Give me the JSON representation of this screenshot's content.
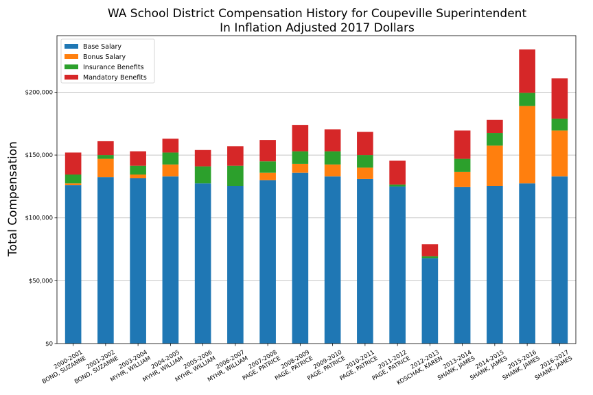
{
  "chart_data": {
    "type": "bar",
    "stacked": true,
    "title": "WA School District Compensation History for Coupeville Superintendent",
    "subtitle": "In Inflation Adjusted 2017 Dollars",
    "ylabel": "Total Compensation",
    "ylim": [
      0,
      245000
    ],
    "yticks": [
      0,
      50000,
      100000,
      150000,
      200000
    ],
    "ytick_labels": [
      "$0",
      "$50,000",
      "$100,000",
      "$150,000",
      "$200,000"
    ],
    "grid": "horizontal",
    "legend_position": "top-left",
    "categories": [
      [
        "2000-2001",
        "BOND, SUZANNE"
      ],
      [
        "2001-2002",
        "BOND, SUZANNE"
      ],
      [
        "2003-2004",
        "MYHR, WILLIAM"
      ],
      [
        "2004-2005",
        "MYHR, WILLIAM"
      ],
      [
        "2005-2006",
        "MYHR, WILLIAM"
      ],
      [
        "2006-2007",
        "MYHR, WILLIAM"
      ],
      [
        "2007-2008",
        "PAGE, PATRICE"
      ],
      [
        "2008-2009",
        "PAGE, PATRICE"
      ],
      [
        "2009-2010",
        "PAGE, PATRICE"
      ],
      [
        "2010-2011",
        "PAGE, PATRICE"
      ],
      [
        "2011-2012",
        "PAGE, PATRICE"
      ],
      [
        "2012-2013",
        "KOSCHAK, KAREN"
      ],
      [
        "2013-2014",
        "SHANK, JAMES"
      ],
      [
        "2014-2015",
        "SHANK, JAMES"
      ],
      [
        "2015-2016",
        "SHANK, JAMES"
      ],
      [
        "2016-2017",
        "SHANK, JAMES"
      ]
    ],
    "series": [
      {
        "name": "Base Salary",
        "color": "#1f77b4",
        "values": [
          126000,
          132500,
          131500,
          133000,
          127500,
          125500,
          130000,
          136000,
          133000,
          131000,
          125000,
          68000,
          124500,
          125500,
          127500,
          133000
        ]
      },
      {
        "name": "Bonus Salary",
        "color": "#ff7f0e",
        "values": [
          1500,
          14500,
          3000,
          9500,
          0,
          0,
          6000,
          7000,
          9500,
          9000,
          0,
          0,
          12000,
          32000,
          61500,
          36500
        ]
      },
      {
        "name": "Insurance Benefits",
        "color": "#2ca02c",
        "values": [
          7000,
          3000,
          7000,
          9500,
          13500,
          16000,
          9000,
          10000,
          10500,
          10000,
          1500,
          1500,
          10500,
          10000,
          10500,
          9500
        ]
      },
      {
        "name": "Mandatory Benefits",
        "color": "#d62728",
        "values": [
          17500,
          11000,
          11500,
          11000,
          13000,
          15500,
          17000,
          21000,
          17500,
          18500,
          19000,
          9500,
          22500,
          10500,
          34500,
          32000
        ]
      }
    ]
  }
}
